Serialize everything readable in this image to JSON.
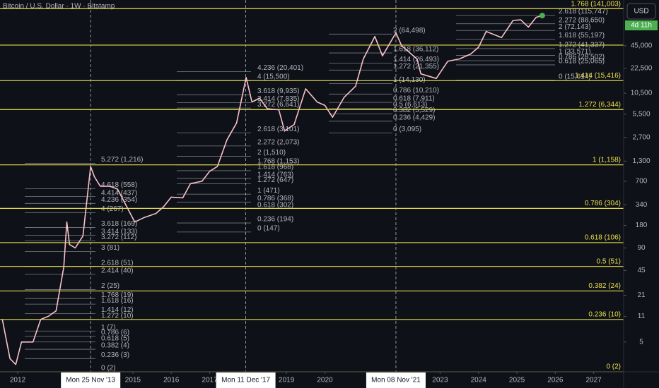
{
  "chart_data": {
    "type": "line",
    "title": "Bitcoin / U.S. Dollar · 1W · Bitstamp",
    "currency": "USD",
    "countdown": "4d 11h",
    "log_scale": true,
    "xlim": [
      2011.54,
      2027.78
    ],
    "ylim": [
      2,
      184000
    ],
    "xticks": [
      2012,
      2015,
      2016,
      2017,
      2019,
      2020,
      2023,
      2024,
      2025,
      2026,
      2027
    ],
    "yticks": [
      {
        "value": 45000,
        "label": "45,000"
      },
      {
        "value": 22500,
        "label": "22,500"
      },
      {
        "value": 10500,
        "label": "10,500"
      },
      {
        "value": 5500,
        "label": "5,500"
      },
      {
        "value": 2700,
        "label": "2,700"
      },
      {
        "value": 1300,
        "label": "1,300"
      },
      700,
      340,
      180,
      90,
      45,
      21,
      11,
      5
    ],
    "series": [
      {
        "name": "BTCUSD",
        "color": "#f6c1c7",
        "x": [
          2011.6,
          2011.8,
          2011.95,
          2012.1,
          2012.4,
          2012.6,
          2012.8,
          2013.0,
          2013.2,
          2013.28,
          2013.35,
          2013.5,
          2013.7,
          2013.9,
          2014.0,
          2014.15,
          2014.4,
          2014.6,
          2014.8,
          2015.05,
          2015.3,
          2015.6,
          2015.8,
          2016.0,
          2016.3,
          2016.5,
          2016.8,
          2017.0,
          2017.2,
          2017.45,
          2017.7,
          2017.95,
          2018.1,
          2018.3,
          2018.5,
          2018.8,
          2018.95,
          2019.2,
          2019.5,
          2019.8,
          2020.0,
          2020.2,
          2020.5,
          2020.8,
          2021.0,
          2021.3,
          2021.5,
          2021.85,
          2022.0,
          2022.4,
          2022.5,
          2022.9,
          2023.2,
          2023.5,
          2023.8,
          2024.0,
          2024.2,
          2024.6,
          2024.9,
          2025.1,
          2025.3,
          2025.5,
          2025.66
        ],
        "values": [
          10,
          3,
          2.5,
          5,
          5,
          10,
          11,
          13,
          50,
          200,
          100,
          90,
          130,
          1100,
          800,
          600,
          600,
          550,
          350,
          200,
          230,
          260,
          320,
          430,
          420,
          650,
          700,
          950,
          1100,
          2500,
          4200,
          17000,
          8000,
          9000,
          6500,
          6300,
          3300,
          4000,
          12000,
          8000,
          7200,
          5000,
          9200,
          13000,
          30000,
          60000,
          33000,
          67000,
          45000,
          30000,
          19000,
          16500,
          28000,
          30000,
          35000,
          43000,
          70000,
          58000,
          98000,
          100000,
          80000,
          108000,
          114000
        ]
      }
    ],
    "last_point_color": "#4caf50",
    "date_markers": [
      {
        "value": 2013.9,
        "label": "Mon 25 Nov '13"
      },
      {
        "value": 2017.94,
        "label": "Mon 11 Dec '17"
      },
      {
        "value": 2021.85,
        "label": "Mon 08 Nov '21"
      }
    ],
    "key_levels_color": "#e8e04a",
    "key_levels": [
      {
        "value": 141003,
        "label": "1.768 (141,003)"
      },
      {
        "value": 15416,
        "label": "1.414 (15,416)"
      },
      {
        "value": 6344,
        "label": "1.272 (6,344)"
      },
      {
        "value": 1158,
        "label": "1 (1,158)"
      },
      {
        "value": 304,
        "label": "0.786 (304)"
      },
      {
        "value": 106,
        "label": "0.618 (106)"
      },
      {
        "value": 51,
        "label": "0.5 (51)"
      },
      {
        "value": 24,
        "label": "0.382 (24)"
      },
      {
        "value": 10,
        "label": "0.236 (10)"
      },
      {
        "value": 2,
        "label": "0 (2)"
      }
    ],
    "unlabeled_key_levels": [
      46000
    ],
    "fib_sets": [
      {
        "levels": [
          {
            "value": 1216,
            "label": "5.272 (1,216)"
          },
          {
            "value": 558,
            "label": "4.618 (558)"
          },
          {
            "value": 437,
            "label": "4.414 (437)"
          },
          {
            "value": 354,
            "label": "4.236 (354)"
          },
          {
            "value": 267,
            "label": "4 (267)"
          },
          {
            "value": 169,
            "label": "3.618 (169)"
          },
          {
            "value": 133,
            "label": "3.414 (133)"
          },
          {
            "value": 112,
            "label": "3.272 (112)"
          },
          {
            "value": 81,
            "label": "3 (81)"
          },
          {
            "value": 51,
            "label": "2.618 (51)"
          },
          {
            "value": 40,
            "label": "2.414 (40)"
          },
          {
            "value": 25,
            "label": "2 (25)"
          },
          {
            "value": 19,
            "label": "1.768 (19)"
          },
          {
            "value": 16,
            "label": "1.618 (16)"
          },
          {
            "value": 12,
            "label": "1.414 (12)"
          },
          {
            "value": 10,
            "label": "1.272 (10)"
          },
          {
            "value": 7,
            "label": "1 (7)"
          },
          {
            "value": 6,
            "label": "0.786 (6)"
          },
          {
            "value": 5,
            "label": "0.618 (5)"
          },
          {
            "value": 4,
            "label": "0.382 (4)"
          },
          {
            "value": 3,
            "label": "0.236 (3)"
          },
          {
            "value": 2,
            "label": "0 (2)"
          }
        ]
      },
      {
        "levels": [
          {
            "value": 20401,
            "label": "4.236 (20,401)"
          },
          {
            "value": 15500,
            "label": "4 (15,500)"
          },
          {
            "value": 9935,
            "label": "3.618 (9,935)"
          },
          {
            "value": 7835,
            "label": "3.414 (7,835)"
          },
          {
            "value": 6641,
            "label": "3.272 (6,641)"
          },
          {
            "value": 3101,
            "label": "2.618 (3,101)"
          },
          {
            "value": 2073,
            "label": "2.272 (2,073)"
          },
          {
            "value": 1510,
            "label": "2 (1,510)"
          },
          {
            "value": 1153,
            "label": "1.768 (1,153)"
          },
          {
            "value": 968,
            "label": "1.618 (968)"
          },
          {
            "value": 763,
            "label": "1.414 (763)"
          },
          {
            "value": 647,
            "label": "1.272 (647)"
          },
          {
            "value": 471,
            "label": "1 (471)"
          },
          {
            "value": 368,
            "label": "0.786 (368)"
          },
          {
            "value": 302,
            "label": "0.618 (302)"
          },
          {
            "value": 194,
            "label": "0.236 (194)"
          },
          {
            "value": 147,
            "label": "0 (147)"
          }
        ]
      },
      {
        "levels": [
          {
            "value": 64498,
            "label": "2 (64,498)"
          },
          {
            "value": 36112,
            "label": "1.618 (36,112)"
          },
          {
            "value": 26493,
            "label": "1.414 (26,493)"
          },
          {
            "value": 21355,
            "label": "1.272 (21,355)"
          },
          {
            "value": 14130,
            "label": "1 (14,130)"
          },
          {
            "value": 10210,
            "label": "0.786 (10,210)"
          },
          {
            "value": 7911,
            "label": "0.618 (7,911)"
          },
          {
            "value": 6613,
            "label": "0.5 (6,613)"
          },
          {
            "value": 5529,
            "label": "0.382 (5,529)"
          },
          {
            "value": 4429,
            "label": "0.236 (4,429)"
          },
          {
            "value": 3095,
            "label": "0 (3,095)"
          }
        ]
      },
      {
        "levels": [
          {
            "value": 115747,
            "label": "2.618 (115,747)"
          },
          {
            "value": 88650,
            "label": "2.272 (88,650)"
          },
          {
            "value": 72143,
            "label": "2 (72,143)"
          },
          {
            "value": 55197,
            "label": "1.618 (55,197)"
          },
          {
            "value": 41337,
            "label": "1.272 (41,337)"
          },
          {
            "value": 33571,
            "label": "1 (33,571)"
          },
          {
            "value": 28502,
            "label": "0.786 (28,502)"
          },
          {
            "value": 25065,
            "label": "0.618 (25,065)"
          },
          {
            "value": 15614,
            "label": "0 (15,614)"
          }
        ]
      }
    ]
  }
}
